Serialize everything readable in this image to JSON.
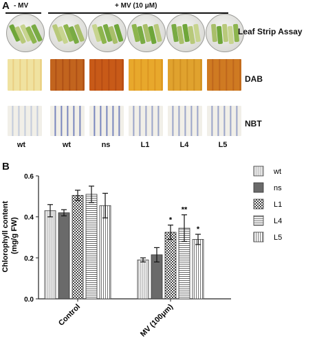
{
  "panel_a": {
    "label": "A",
    "control_header": "- MV",
    "treatment_header": "+ MV (10 μM)",
    "row_labels": [
      "Leaf Strip Assay",
      "DAB",
      "NBT"
    ],
    "genotypes": [
      "wt",
      "wt",
      "ns",
      "L1",
      "L4",
      "L5"
    ]
  },
  "panel_b": {
    "label": "B"
  },
  "chart_data": {
    "type": "bar",
    "categories": [
      "Control",
      "MV (100μm)"
    ],
    "ylabel": "Chlorophyll content\n(mg/g FW)",
    "ylim": [
      0.0,
      0.6
    ],
    "yticks": [
      "0.0",
      "0.2",
      "0.4",
      "0.6"
    ],
    "series": [
      {
        "name": "wt",
        "values": [
          0.43,
          0.19
        ],
        "errors": [
          0.03,
          0.01
        ],
        "stars": [
          "",
          ""
        ],
        "pattern": "vlines-light"
      },
      {
        "name": "ns",
        "values": [
          0.42,
          0.215
        ],
        "errors": [
          0.015,
          0.035
        ],
        "stars": [
          "",
          ""
        ],
        "pattern": "dark"
      },
      {
        "name": "L1",
        "values": [
          0.505,
          0.325
        ],
        "errors": [
          0.025,
          0.035
        ],
        "stars": [
          "",
          "*"
        ],
        "pattern": "checker"
      },
      {
        "name": "L4",
        "values": [
          0.51,
          0.345
        ],
        "errors": [
          0.04,
          0.065
        ],
        "stars": [
          "",
          "**"
        ],
        "pattern": "hlines"
      },
      {
        "name": "L5",
        "values": [
          0.455,
          0.29
        ],
        "errors": [
          0.06,
          0.025
        ],
        "stars": [
          "",
          "*"
        ],
        "pattern": "vlines"
      }
    ]
  }
}
